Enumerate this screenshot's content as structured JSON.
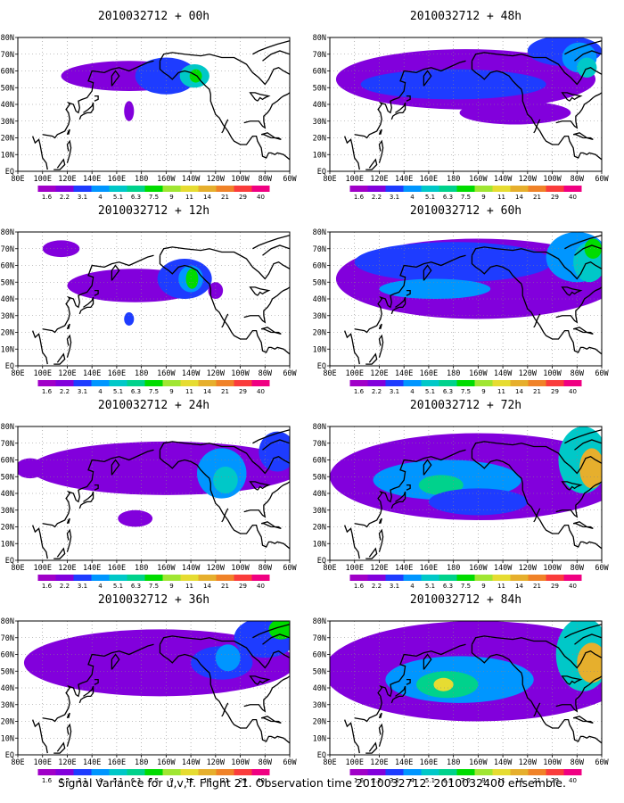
{
  "caption": "Signal Variance for u,v,T. Flight 21. Observation time 2010032712. 2010032400 ensemble.",
  "x_ticks": [
    "80E",
    "100E",
    "120E",
    "140E",
    "160E",
    "180",
    "160W",
    "140W",
    "120W",
    "100W",
    "80W",
    "60W"
  ],
  "y_ticks": [
    "EQ",
    "10N",
    "20N",
    "30N",
    "40N",
    "50N",
    "60N",
    "70N",
    "80N"
  ],
  "colorbar": {
    "levels": [
      "1.6",
      "2.2",
      "3.1",
      "4",
      "5.1",
      "6.3",
      "7.5",
      "9",
      "11",
      "14",
      "21",
      "29",
      "40"
    ],
    "colors": [
      "#a000c8",
      "#8200dc",
      "#1e3cff",
      "#0096ff",
      "#00c8c8",
      "#00d28c",
      "#00dc00",
      "#a0e632",
      "#e6dc32",
      "#e6af2d",
      "#f08228",
      "#fa3c3c",
      "#f00082"
    ]
  },
  "map": {
    "land_outline_color": "#000000",
    "grid": "dotted",
    "lon_range": [
      "80E",
      "60W"
    ],
    "lat_range": [
      "EQ",
      "80N"
    ]
  },
  "chart_data": [
    {
      "type": "heatmap",
      "title": "2010032712 + 00h",
      "features": [
        {
          "lon": 170,
          "lat": 57,
          "rlon": 55,
          "rlat": 9,
          "level": 1
        },
        {
          "lon": 200,
          "lat": 57,
          "rlon": 25,
          "rlat": 11,
          "level": 2
        },
        {
          "lon": 223,
          "lat": 57,
          "rlon": 12,
          "rlat": 7,
          "level": 4
        },
        {
          "lon": 224,
          "lat": 57,
          "rlon": 5,
          "rlat": 4,
          "level": 6
        },
        {
          "lon": 170,
          "lat": 36,
          "rlon": 4,
          "rlat": 6,
          "level": 1
        }
      ]
    },
    {
      "type": "heatmap",
      "title": "2010032712 + 48h",
      "features": [
        {
          "lon": 190,
          "lat": 55,
          "rlon": 105,
          "rlat": 18,
          "level": 1
        },
        {
          "lon": 180,
          "lat": 52,
          "rlon": 75,
          "rlat": 9,
          "level": 2
        },
        {
          "lon": 230,
          "lat": 35,
          "rlon": 45,
          "rlat": 7,
          "level": 1
        },
        {
          "lon": 270,
          "lat": 72,
          "rlon": 30,
          "rlat": 9,
          "level": 2
        },
        {
          "lon": 282,
          "lat": 68,
          "rlon": 14,
          "rlat": 9,
          "level": 3
        },
        {
          "lon": 288,
          "lat": 62,
          "rlon": 8,
          "rlat": 6,
          "level": 4
        }
      ]
    },
    {
      "type": "heatmap",
      "title": "2010032712 + 12h",
      "features": [
        {
          "lon": 175,
          "lat": 48,
          "rlon": 55,
          "rlat": 10,
          "level": 1
        },
        {
          "lon": 215,
          "lat": 52,
          "rlon": 22,
          "rlat": 12,
          "level": 2
        },
        {
          "lon": 220,
          "lat": 52,
          "rlon": 10,
          "rlat": 8,
          "level": 3
        },
        {
          "lon": 221,
          "lat": 52,
          "rlon": 5,
          "rlat": 6,
          "level": 6
        },
        {
          "lon": 240,
          "lat": 45,
          "rlon": 6,
          "rlat": 5,
          "level": 1
        },
        {
          "lon": 115,
          "lat": 70,
          "rlon": 15,
          "rlat": 5,
          "level": 1
        },
        {
          "lon": 170,
          "lat": 28,
          "rlon": 4,
          "rlat": 4,
          "level": 2
        }
      ]
    },
    {
      "type": "heatmap",
      "title": "2010032712 + 60h",
      "features": [
        {
          "lon": 200,
          "lat": 52,
          "rlon": 115,
          "rlat": 24,
          "level": 1
        },
        {
          "lon": 180,
          "lat": 62,
          "rlon": 80,
          "rlat": 12,
          "level": 2
        },
        {
          "lon": 165,
          "lat": 46,
          "rlon": 45,
          "rlat": 6,
          "level": 3
        },
        {
          "lon": 280,
          "lat": 65,
          "rlon": 25,
          "rlat": 15,
          "level": 3
        },
        {
          "lon": 290,
          "lat": 62,
          "rlon": 13,
          "rlat": 12,
          "level": 4
        },
        {
          "lon": 293,
          "lat": 70,
          "rlon": 7,
          "rlat": 6,
          "level": 6
        }
      ]
    },
    {
      "type": "heatmap",
      "title": "2010032712 + 24h",
      "features": [
        {
          "lon": 200,
          "lat": 55,
          "rlon": 110,
          "rlat": 16,
          "level": 1
        },
        {
          "lon": 245,
          "lat": 52,
          "rlon": 20,
          "rlat": 15,
          "level": 3
        },
        {
          "lon": 248,
          "lat": 48,
          "rlon": 10,
          "rlat": 8,
          "level": 4
        },
        {
          "lon": 175,
          "lat": 25,
          "rlon": 14,
          "rlat": 5,
          "level": 1
        },
        {
          "lon": 290,
          "lat": 65,
          "rlon": 15,
          "rlat": 12,
          "level": 2
        },
        {
          "lon": 90,
          "lat": 55,
          "rlon": 12,
          "rlat": 6,
          "level": 1
        }
      ]
    },
    {
      "type": "heatmap",
      "title": "2010032712 + 72h",
      "features": [
        {
          "lon": 200,
          "lat": 50,
          "rlon": 120,
          "rlat": 26,
          "level": 1
        },
        {
          "lon": 175,
          "lat": 48,
          "rlon": 60,
          "rlat": 12,
          "level": 3
        },
        {
          "lon": 170,
          "lat": 45,
          "rlon": 18,
          "rlat": 6,
          "level": 5
        },
        {
          "lon": 200,
          "lat": 35,
          "rlon": 40,
          "rlat": 8,
          "level": 2
        },
        {
          "lon": 285,
          "lat": 60,
          "rlon": 20,
          "rlat": 20,
          "level": 4
        },
        {
          "lon": 292,
          "lat": 55,
          "rlon": 10,
          "rlat": 12,
          "level": 9
        }
      ]
    },
    {
      "type": "heatmap",
      "title": "2010032712 + 36h",
      "features": [
        {
          "lon": 195,
          "lat": 55,
          "rlon": 110,
          "rlat": 20,
          "level": 1
        },
        {
          "lon": 245,
          "lat": 55,
          "rlon": 25,
          "rlat": 10,
          "level": 2
        },
        {
          "lon": 250,
          "lat": 58,
          "rlon": 10,
          "rlat": 8,
          "level": 3
        },
        {
          "lon": 280,
          "lat": 70,
          "rlon": 25,
          "rlat": 12,
          "level": 2
        },
        {
          "lon": 293,
          "lat": 75,
          "rlon": 10,
          "rlat": 6,
          "level": 6
        }
      ]
    },
    {
      "type": "heatmap",
      "title": "2010032712 + 84h",
      "features": [
        {
          "lon": 200,
          "lat": 50,
          "rlon": 125,
          "rlat": 30,
          "level": 1
        },
        {
          "lon": 185,
          "lat": 45,
          "rlon": 60,
          "rlat": 14,
          "level": 3
        },
        {
          "lon": 175,
          "lat": 42,
          "rlon": 25,
          "rlat": 8,
          "level": 5
        },
        {
          "lon": 172,
          "lat": 42,
          "rlon": 8,
          "rlat": 4,
          "level": 8
        },
        {
          "lon": 285,
          "lat": 60,
          "rlon": 22,
          "rlat": 22,
          "level": 4
        },
        {
          "lon": 292,
          "lat": 55,
          "rlon": 12,
          "rlat": 12,
          "level": 9
        }
      ]
    }
  ]
}
